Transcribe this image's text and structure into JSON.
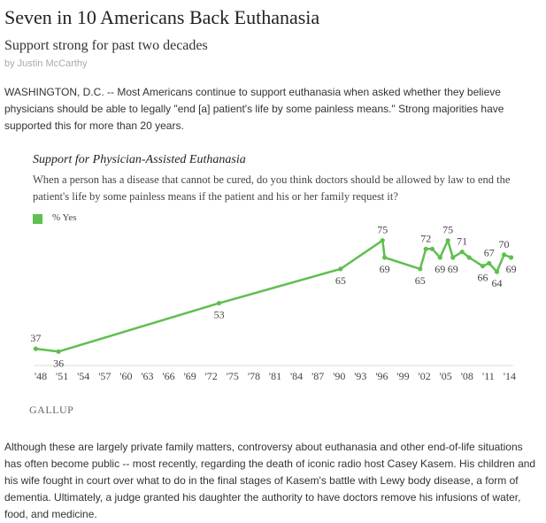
{
  "article": {
    "headline": "Seven in 10 Americans Back Euthanasia",
    "subhead": "Support strong for past two decades",
    "byline": "by Justin McCarthy",
    "lead": "WASHINGTON, D.C. -- Most Americans continue to support euthanasia when asked whether they believe physicians should be able to legally \"end [a] patient's life by some painless means.\" Strong majorities have supported this for more than 20 years.",
    "body": "Although these are largely private family matters, controversy about euthanasia and other end-of-life situations has often become public -- most recently, regarding the death of iconic radio host Casey Kasem. His children and his wife fought in court over what to do in the final stages of Kasem's battle with Lewy body disease, a form of dementia. Ultimately, a judge granted his daughter the authority to have doctors remove his infusions of water, food, and medicine.",
    "source_logo": "GALLUP"
  },
  "chart": {
    "title": "Support for Physician-Assisted Euthanasia",
    "question": "When a person has a disease that cannot be cured, do you think doctors should be allowed by law to end the patient's life by some painless means if the patient and his or her family request it?"
  },
  "chart_data": {
    "type": "line",
    "title": "Support for Physician-Assisted Euthanasia",
    "xlabel": "",
    "ylabel": "",
    "x_tick_labels": [
      "'48",
      "'51",
      "'54",
      "'57",
      "'60",
      "'63",
      "'66",
      "'69",
      "'72",
      "'75",
      "'78",
      "'81",
      "'84",
      "'87",
      "'90",
      "'93",
      "'96",
      "'99",
      "'02",
      "'05",
      "'08",
      "'11",
      "'14"
    ],
    "xlim": [
      1947,
      2014.5
    ],
    "ylim": [
      33,
      78
    ],
    "grid": false,
    "legend_position": "top-left",
    "color": "#5fbf4f",
    "series": [
      {
        "name": "% Yes",
        "points": [
          {
            "x": 1947.3,
            "y": 37,
            "label": "37"
          },
          {
            "x": 1950.5,
            "y": 36,
            "label": "36"
          },
          {
            "x": 1973.1,
            "y": 53,
            "label": "53"
          },
          {
            "x": 1990.2,
            "y": 65,
            "label": "65"
          },
          {
            "x": 1996.1,
            "y": 75,
            "label": "75"
          },
          {
            "x": 1996.4,
            "y": 69,
            "label": "69"
          },
          {
            "x": 2001.4,
            "y": 65,
            "label": "65"
          },
          {
            "x": 2002.2,
            "y": 72,
            "label": "72"
          },
          {
            "x": 2003.1,
            "y": 72,
            "label": ""
          },
          {
            "x": 2004.2,
            "y": 69,
            "label": "69"
          },
          {
            "x": 2005.3,
            "y": 75,
            "label": "75"
          },
          {
            "x": 2006.0,
            "y": 69,
            "label": "69"
          },
          {
            "x": 2007.3,
            "y": 71,
            "label": "71"
          },
          {
            "x": 2008.3,
            "y": 69,
            "label": ""
          },
          {
            "x": 2010.2,
            "y": 66,
            "label": "66"
          },
          {
            "x": 2011.1,
            "y": 67,
            "label": "67"
          },
          {
            "x": 2012.2,
            "y": 64,
            "label": "64"
          },
          {
            "x": 2013.2,
            "y": 70,
            "label": "70"
          },
          {
            "x": 2014.2,
            "y": 69,
            "label": "69"
          }
        ]
      }
    ]
  }
}
